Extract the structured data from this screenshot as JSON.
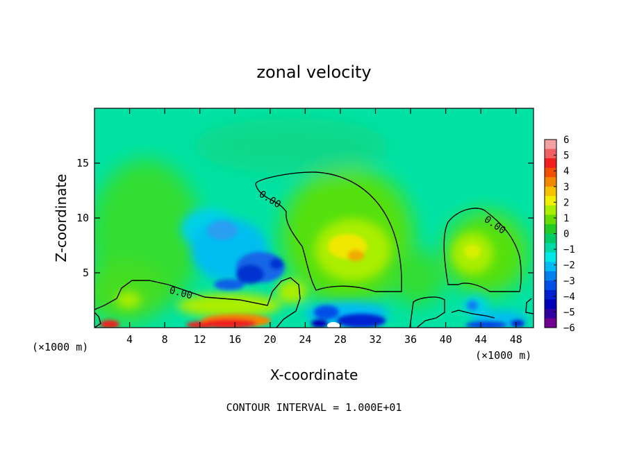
{
  "chart_data": {
    "type": "heatmap",
    "title": "zonal velocity",
    "xlabel": "X-coordinate",
    "ylabel": "Z-coordinate",
    "x_unit": "(×1000 m)",
    "xlim": [
      0,
      50
    ],
    "ylim": [
      0,
      20
    ],
    "x_ticks": [
      4,
      8,
      12,
      16,
      20,
      24,
      28,
      32,
      36,
      40,
      44,
      48
    ],
    "y_ticks": [
      5,
      10,
      15
    ],
    "colorbar": {
      "ticks": [
        6,
        5,
        4,
        3,
        2,
        1,
        0,
        -1,
        -2,
        -3,
        -4,
        -5,
        -6
      ],
      "tick_labels": [
        "6",
        "5",
        "4",
        "3",
        "2",
        "1",
        "0",
        "−1",
        "−2",
        "−3",
        "−4",
        "−5",
        "−6"
      ],
      "colors": [
        "#f4a0a0",
        "#f06060",
        "#f01e1e",
        "#f05000",
        "#f28800",
        "#f5c000",
        "#f0f000",
        "#aaee00",
        "#66dd00",
        "#22cc22",
        "#00cc66",
        "#00d8a8",
        "#00e8e8",
        "#00bbf5",
        "#0080f0",
        "#0050e8",
        "#0020d0",
        "#0000b8",
        "#3000a0",
        "#700090"
      ]
    },
    "contour_level_label": "0.00",
    "contour_interval_text": "CONTOUR INTERVAL = 1.000E+01",
    "features": [
      {
        "kind": "negative",
        "x": 15,
        "z": 8.5,
        "value": -2.5
      },
      {
        "kind": "negative",
        "x": 17.5,
        "z": 5.0,
        "value": -3.8
      },
      {
        "kind": "positive",
        "x": 29.5,
        "z": 7.0,
        "value": 2.5
      },
      {
        "kind": "positive",
        "x": 43,
        "z": 7.0,
        "value": 1.8
      },
      {
        "kind": "positive",
        "x": 16,
        "z": 0.5,
        "value": 4.5
      },
      {
        "kind": "positive",
        "x": 1.5,
        "z": 0.3,
        "value": 4.2
      },
      {
        "kind": "negative",
        "x": 27,
        "z": 1.0,
        "value": -4.5
      },
      {
        "kind": "negative",
        "x": 45,
        "z": 0.4,
        "value": -4.0
      },
      {
        "kind": "negative",
        "x": 42,
        "z": 2.0,
        "value": -2.0
      }
    ]
  }
}
